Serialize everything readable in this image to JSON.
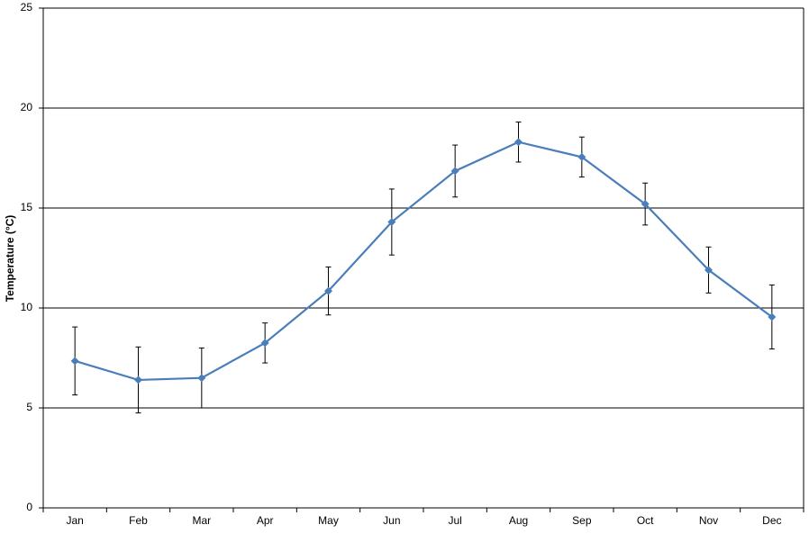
{
  "chart_data": {
    "type": "line",
    "y_label": "Temperature (°C)",
    "categories": [
      "Jan",
      "Feb",
      "Mar",
      "Apr",
      "May",
      "Jun",
      "Jul",
      "Aug",
      "Sep",
      "Oct",
      "Nov",
      "Dec"
    ],
    "series": [
      {
        "color": "#4a7ebb",
        "values": [
          7.35,
          6.4,
          6.5,
          8.25,
          10.85,
          14.3,
          16.85,
          18.3,
          17.55,
          15.2,
          11.9,
          9.55
        ],
        "errors": [
          1.7,
          1.65,
          1.5,
          1.0,
          1.2,
          1.65,
          1.3,
          1.0,
          1.0,
          1.05,
          1.15,
          1.6
        ]
      }
    ],
    "ylim": [
      0,
      25
    ],
    "yticks": [
      0,
      5,
      10,
      15,
      20,
      25
    ],
    "grid": true
  }
}
